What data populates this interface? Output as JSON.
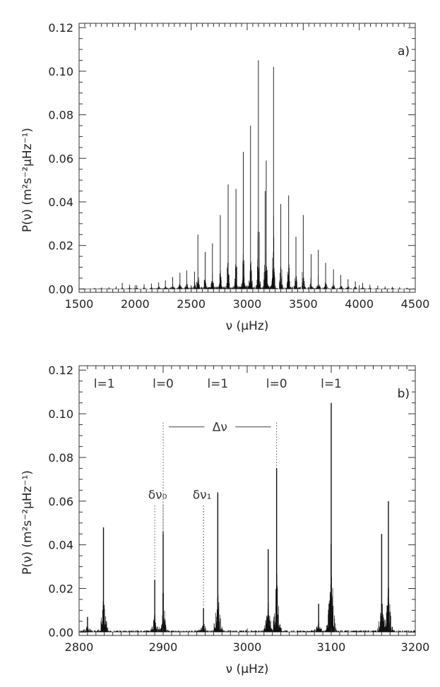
{
  "chart_data": [
    {
      "panel": "a)",
      "type": "line",
      "xlabel": "ν (μHz)",
      "ylabel": "P(ν) (m²s⁻²μHz⁻¹)",
      "xlim": [
        1500,
        4500
      ],
      "ylim": [
        -0.0015,
        0.122
      ],
      "xticks": [
        "1500",
        "2000",
        "2500",
        "3000",
        "3500",
        "4000",
        "4500"
      ],
      "yticks": [
        "0.00",
        "0.02",
        "0.04",
        "0.06",
        "0.08",
        "0.10",
        "0.12"
      ],
      "peaks": [
        {
          "x": 1640,
          "y": 0.0005
        },
        {
          "x": 1700,
          "y": 0.0007
        },
        {
          "x": 1765,
          "y": 0.0008
        },
        {
          "x": 1830,
          "y": 0.0012
        },
        {
          "x": 1885,
          "y": 0.0028
        },
        {
          "x": 1950,
          "y": 0.002
        },
        {
          "x": 2015,
          "y": 0.0018
        },
        {
          "x": 2080,
          "y": 0.0022
        },
        {
          "x": 2145,
          "y": 0.0025
        },
        {
          "x": 2210,
          "y": 0.003
        },
        {
          "x": 2270,
          "y": 0.004
        },
        {
          "x": 2335,
          "y": 0.0055
        },
        {
          "x": 2400,
          "y": 0.0075
        },
        {
          "x": 2460,
          "y": 0.0085
        },
        {
          "x": 2530,
          "y": 0.008
        },
        {
          "x": 2560,
          "y": 0.025
        },
        {
          "x": 2625,
          "y": 0.017
        },
        {
          "x": 2690,
          "y": 0.021
        },
        {
          "x": 2760,
          "y": 0.034
        },
        {
          "x": 2830,
          "y": 0.048
        },
        {
          "x": 2900,
          "y": 0.046
        },
        {
          "x": 2965,
          "y": 0.063
        },
        {
          "x": 3030,
          "y": 0.075
        },
        {
          "x": 3100,
          "y": 0.105
        },
        {
          "x": 3160,
          "y": 0.045
        },
        {
          "x": 3170,
          "y": 0.059
        },
        {
          "x": 3235,
          "y": 0.102
        },
        {
          "x": 3300,
          "y": 0.039
        },
        {
          "x": 3370,
          "y": 0.043
        },
        {
          "x": 3435,
          "y": 0.024
        },
        {
          "x": 3500,
          "y": 0.034
        },
        {
          "x": 3570,
          "y": 0.016
        },
        {
          "x": 3635,
          "y": 0.018
        },
        {
          "x": 3700,
          "y": 0.012
        },
        {
          "x": 3770,
          "y": 0.009
        },
        {
          "x": 3835,
          "y": 0.0065
        },
        {
          "x": 3900,
          "y": 0.0045
        },
        {
          "x": 3965,
          "y": 0.0035
        },
        {
          "x": 4030,
          "y": 0.0028
        },
        {
          "x": 4095,
          "y": 0.002
        },
        {
          "x": 4165,
          "y": 0.0016
        },
        {
          "x": 4230,
          "y": 0.0012
        },
        {
          "x": 4295,
          "y": 0.001
        },
        {
          "x": 4360,
          "y": 0.0008
        },
        {
          "x": 4425,
          "y": 0.0006
        }
      ]
    },
    {
      "panel": "b)",
      "type": "line",
      "xlabel": "ν (μHz)",
      "ylabel": "P(ν) (m²s⁻²μHz⁻¹)",
      "xlim": [
        2800,
        3200
      ],
      "ylim": [
        -0.0015,
        0.122
      ],
      "xticks": [
        "2800",
        "2900",
        "3000",
        "3100",
        "3200"
      ],
      "yticks": [
        "0.00",
        "0.02",
        "0.04",
        "0.06",
        "0.08",
        "0.10",
        "0.12"
      ],
      "peaks": [
        {
          "x": 2810,
          "y": 0.007
        },
        {
          "x": 2829,
          "y": 0.048
        },
        {
          "x": 2890,
          "y": 0.024
        },
        {
          "x": 2900,
          "y": 0.046
        },
        {
          "x": 2948,
          "y": 0.011
        },
        {
          "x": 2965,
          "y": 0.064
        },
        {
          "x": 3025,
          "y": 0.038
        },
        {
          "x": 3035,
          "y": 0.075
        },
        {
          "x": 3085,
          "y": 0.013
        },
        {
          "x": 3100,
          "y": 0.105
        },
        {
          "x": 3160,
          "y": 0.045
        },
        {
          "x": 3168,
          "y": 0.06
        }
      ],
      "mode_labels": [
        {
          "text": "l=1",
          "x": 2830
        },
        {
          "text": "l=0",
          "x": 2900
        },
        {
          "text": "l=1",
          "x": 2965
        },
        {
          "text": "l=0",
          "x": 3035
        },
        {
          "text": "l=1",
          "x": 3100
        }
      ],
      "large_separation": {
        "label": "Δν",
        "x0": 2900,
        "x1": 3035,
        "y": 0.094
      },
      "small_separations": [
        {
          "label": "δν₀",
          "x0": 2890,
          "x1": 2900,
          "y": 0.063
        },
        {
          "label": "δν₁",
          "x0": 2948,
          "x1": 2948,
          "y": 0.063
        }
      ]
    }
  ]
}
